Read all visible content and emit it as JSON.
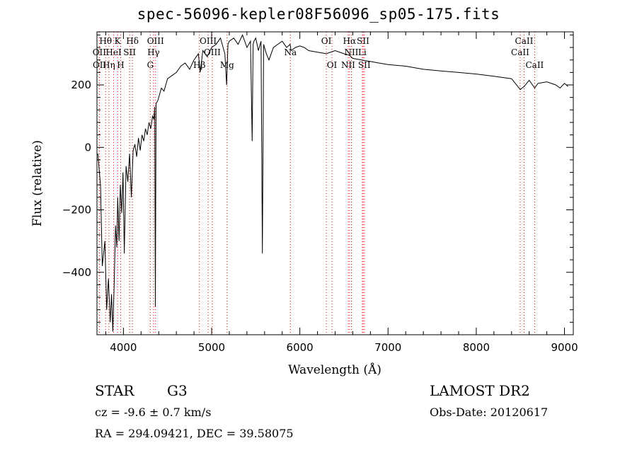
{
  "title": "spec-56096-kepler08F56096_sp05-175.fits",
  "info": {
    "object_class": "STAR",
    "subclass": "G3",
    "cz": "cz = -9.6 ± 0.7 km/s",
    "radec": "RA = 294.09421, DEC =  39.58075",
    "survey": "LAMOST DR2",
    "obs_date": "Obs-Date: 20120617"
  },
  "chart_data": {
    "type": "line",
    "title": "spec-56096-kepler08F56096_sp05-175.fits",
    "xlabel": "Wavelength (Å)",
    "ylabel": "Flux (relative)",
    "xlim": [
      3700,
      9100
    ],
    "ylim": [
      -600,
      370
    ],
    "xticks": [
      4000,
      5000,
      6000,
      7000,
      8000,
      9000
    ],
    "yticks": [
      -400,
      -200,
      0,
      200
    ],
    "series": [
      {
        "x": [
          3710,
          3740,
          3760,
          3790,
          3810,
          3830,
          3850,
          3865,
          3880,
          3895,
          3910,
          3925,
          3935,
          3950,
          3965,
          3980,
          3995,
          4010,
          4030,
          4050,
          4070,
          4090,
          4110,
          4130,
          4150,
          4170,
          4190,
          4210,
          4230,
          4250,
          4270,
          4290,
          4310,
          4330,
          4345,
          4355,
          4362,
          4370,
          4390,
          4410,
          4430,
          4460,
          4500,
          4550,
          4600,
          4650,
          4700,
          4750,
          4800,
          4850,
          4870,
          4900,
          4950,
          5000,
          5050,
          5100,
          5150,
          5170,
          5185,
          5200,
          5250,
          5300,
          5350,
          5400,
          5440,
          5460,
          5470,
          5480,
          5500,
          5530,
          5560,
          5575,
          5590,
          5620,
          5650,
          5700,
          5750,
          5800,
          5850,
          5890,
          5900,
          5950,
          6000,
          6050,
          6100,
          6200,
          6300,
          6400,
          6500,
          6563,
          6600,
          6700,
          6800,
          6900,
          7000,
          7200,
          7400,
          7600,
          7800,
          8000,
          8200,
          8400,
          8498,
          8542,
          8600,
          8662,
          8700,
          8800,
          8900,
          8950,
          9000,
          9040
        ],
        "y": [
          -20,
          -120,
          -380,
          -300,
          -520,
          -420,
          -560,
          -470,
          -590,
          -440,
          -250,
          -320,
          -160,
          -300,
          -120,
          -210,
          -80,
          -340,
          -60,
          -110,
          -20,
          -160,
          -10,
          10,
          -30,
          30,
          -10,
          40,
          20,
          60,
          40,
          80,
          60,
          100,
          90,
          130,
          -510,
          140,
          150,
          170,
          190,
          180,
          220,
          230,
          240,
          260,
          270,
          250,
          280,
          300,
          240,
          310,
          290,
          320,
          330,
          350,
          300,
          200,
          330,
          340,
          350,
          330,
          360,
          320,
          340,
          20,
          330,
          340,
          350,
          310,
          340,
          -340,
          330,
          300,
          280,
          320,
          330,
          340,
          320,
          330,
          310,
          320,
          325,
          320,
          310,
          305,
          300,
          310,
          300,
          295,
          285,
          280,
          275,
          270,
          265,
          260,
          250,
          245,
          240,
          235,
          228,
          220,
          185,
          195,
          215,
          190,
          205,
          210,
          200,
          190,
          205,
          195
        ]
      }
    ],
    "lines": [
      {
        "label": "Hθ",
        "x": 3798,
        "row": 1
      },
      {
        "label": "K",
        "x": 3934,
        "row": 1
      },
      {
        "label": "Hδ",
        "x": 4102,
        "row": 1
      },
      {
        "label": "OIII",
        "x": 4364,
        "row": 1
      },
      {
        "label": "OIII",
        "x": 4960,
        "row": 1
      },
      {
        "label": "OI",
        "x": 6300,
        "row": 1
      },
      {
        "label": "Hα",
        "x": 6563,
        "row": 1
      },
      {
        "label": "SII",
        "x": 6717,
        "row": 1
      },
      {
        "label": "CaII",
        "x": 8542,
        "row": 1
      },
      {
        "label": "OII",
        "x": 3727,
        "row": 2
      },
      {
        "label": "HeI",
        "x": 3889,
        "row": 2
      },
      {
        "label": "SII",
        "x": 4070,
        "row": 2
      },
      {
        "label": "Hγ",
        "x": 4341,
        "row": 2
      },
      {
        "label": "OIII",
        "x": 5007,
        "row": 2
      },
      {
        "label": "Na",
        "x": 5893,
        "row": 2
      },
      {
        "label": "NII",
        "x": 6584,
        "row": 2
      },
      {
        "label": "Li",
        "x": 6708,
        "row": 2
      },
      {
        "label": "CaII",
        "x": 8498,
        "row": 2
      },
      {
        "label": "OII",
        "x": 3729,
        "row": 3
      },
      {
        "label": "Hη",
        "x": 3835,
        "row": 3
      },
      {
        "label": "H",
        "x": 3969,
        "row": 3
      },
      {
        "label": "G",
        "x": 4305,
        "row": 3
      },
      {
        "label": "Hβ",
        "x": 4861,
        "row": 3
      },
      {
        "label": "Mg",
        "x": 5175,
        "row": 3
      },
      {
        "label": "OI",
        "x": 6364,
        "row": 3
      },
      {
        "label": "NII",
        "x": 6548,
        "row": 3
      },
      {
        "label": "SII",
        "x": 6731,
        "row": 3
      },
      {
        "label": "CaII",
        "x": 8662,
        "row": 3
      }
    ],
    "line_color": "#ff0000",
    "grid": false
  }
}
